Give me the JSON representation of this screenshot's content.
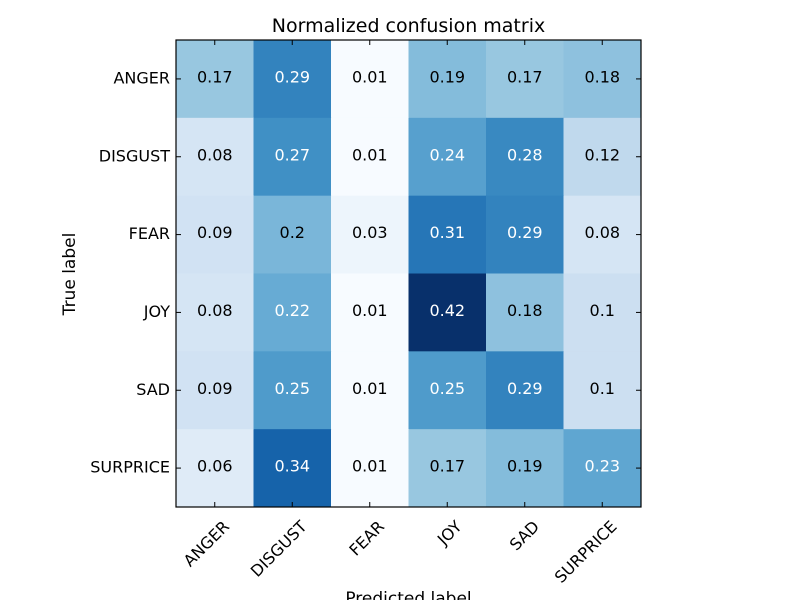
{
  "chart_data": {
    "type": "heatmap",
    "title": "Normalized confusion matrix",
    "xlabel": "Predicted label",
    "ylabel": "True label",
    "x_categories": [
      "ANGER",
      "DISGUST",
      "FEAR",
      "JOY",
      "SAD",
      "SURPRICE"
    ],
    "y_categories": [
      "ANGER",
      "DISGUST",
      "FEAR",
      "JOY",
      "SAD",
      "SURPRICE"
    ],
    "values": [
      [
        0.17,
        0.29,
        0.01,
        0.19,
        0.17,
        0.18
      ],
      [
        0.08,
        0.27,
        0.01,
        0.24,
        0.28,
        0.12
      ],
      [
        0.09,
        0.2,
        0.03,
        0.31,
        0.29,
        0.08
      ],
      [
        0.08,
        0.22,
        0.01,
        0.42,
        0.18,
        0.1
      ],
      [
        0.09,
        0.25,
        0.01,
        0.25,
        0.29,
        0.1
      ],
      [
        0.06,
        0.34,
        0.01,
        0.17,
        0.19,
        0.23
      ]
    ],
    "colormap": "Blues",
    "colormap_stops": [
      "#f7fbff",
      "#deebf7",
      "#c6dbef",
      "#9ecae1",
      "#6baed6",
      "#4292c6",
      "#2171b5",
      "#08519c",
      "#08306b"
    ],
    "value_range": [
      0.01,
      0.42
    ],
    "text_color_dark": "#000000",
    "text_color_light": "#ffffff",
    "grid": false,
    "x_tick_rotation_deg": 45
  }
}
